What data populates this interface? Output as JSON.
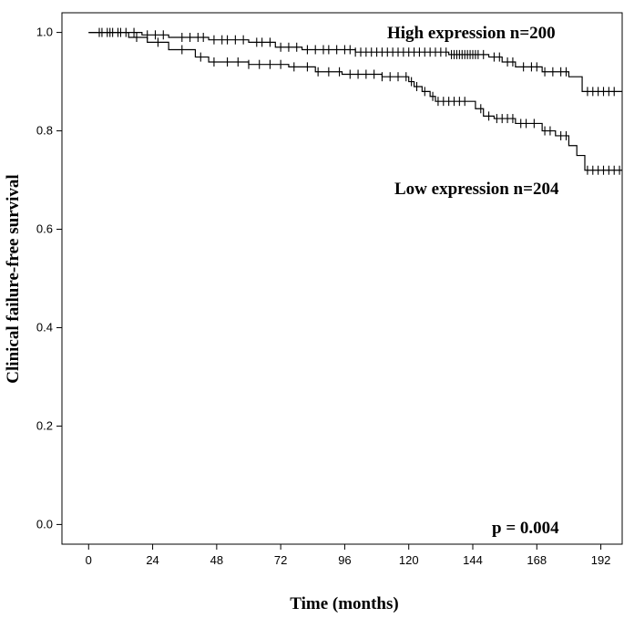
{
  "chart_data": {
    "type": "line",
    "subtype": "kaplan-meier",
    "title": "",
    "xlabel": "Time (months)",
    "ylabel": "Clinical failure-free survival",
    "xlim": [
      -10,
      200
    ],
    "ylim": [
      -0.04,
      1.04
    ],
    "xticks": [
      0,
      24,
      48,
      72,
      96,
      120,
      144,
      168,
      192
    ],
    "yticks": [
      0.0,
      0.2,
      0.4,
      0.6,
      0.8,
      1.0
    ],
    "ytick_labels": [
      "0.0",
      "0.2",
      "0.4",
      "0.6",
      "0.8",
      "1.0"
    ],
    "pvalue_label": "p = 0.004",
    "series": [
      {
        "name": "High expression n=200",
        "label": "High expression n=200",
        "steps": [
          [
            0,
            1.0
          ],
          [
            20,
            0.995
          ],
          [
            30,
            0.99
          ],
          [
            45,
            0.985
          ],
          [
            60,
            0.98
          ],
          [
            70,
            0.97
          ],
          [
            80,
            0.965
          ],
          [
            100,
            0.96
          ],
          [
            135,
            0.955
          ],
          [
            150,
            0.95
          ],
          [
            155,
            0.94
          ],
          [
            160,
            0.93
          ],
          [
            170,
            0.92
          ],
          [
            180,
            0.91
          ],
          [
            185,
            0.88
          ],
          [
            200,
            0.88
          ]
        ],
        "censor": [
          4,
          7,
          9,
          11,
          14,
          17,
          22,
          25,
          28,
          35,
          38,
          41,
          43,
          47,
          50,
          52,
          55,
          58,
          63,
          65,
          68,
          72,
          75,
          78,
          82,
          85,
          88,
          90,
          93,
          96,
          98,
          100,
          102,
          104,
          106,
          108,
          110,
          112,
          114,
          116,
          118,
          120,
          122,
          124,
          126,
          128,
          130,
          132,
          134,
          136,
          137,
          138,
          139,
          140,
          141,
          142,
          143,
          144,
          145,
          146,
          148,
          152,
          154,
          157,
          159,
          163,
          166,
          168,
          171,
          174,
          177,
          179,
          187,
          189,
          191,
          193,
          195,
          197
        ]
      },
      {
        "name": "Low expression n=204",
        "label": "Low expression n=204",
        "steps": [
          [
            0,
            1.0
          ],
          [
            15,
            0.99
          ],
          [
            22,
            0.98
          ],
          [
            30,
            0.965
          ],
          [
            40,
            0.95
          ],
          [
            45,
            0.94
          ],
          [
            60,
            0.935
          ],
          [
            75,
            0.93
          ],
          [
            85,
            0.92
          ],
          [
            95,
            0.915
          ],
          [
            110,
            0.91
          ],
          [
            120,
            0.9
          ],
          [
            122,
            0.89
          ],
          [
            125,
            0.88
          ],
          [
            128,
            0.87
          ],
          [
            130,
            0.86
          ],
          [
            145,
            0.845
          ],
          [
            148,
            0.83
          ],
          [
            152,
            0.825
          ],
          [
            160,
            0.815
          ],
          [
            170,
            0.8
          ],
          [
            175,
            0.79
          ],
          [
            180,
            0.77
          ],
          [
            183,
            0.75
          ],
          [
            186,
            0.72
          ],
          [
            200,
            0.72
          ]
        ],
        "censor": [
          5,
          8,
          12,
          18,
          26,
          35,
          42,
          47,
          52,
          56,
          60,
          64,
          68,
          72,
          77,
          82,
          86,
          90,
          94,
          98,
          101,
          104,
          107,
          110,
          113,
          116,
          119,
          121,
          123,
          126,
          129,
          131,
          133,
          135,
          137,
          139,
          141,
          147,
          150,
          153,
          155,
          157,
          159,
          162,
          164,
          167,
          171,
          173,
          177,
          179,
          187,
          189,
          191,
          193,
          195,
          197,
          199
        ]
      }
    ]
  }
}
